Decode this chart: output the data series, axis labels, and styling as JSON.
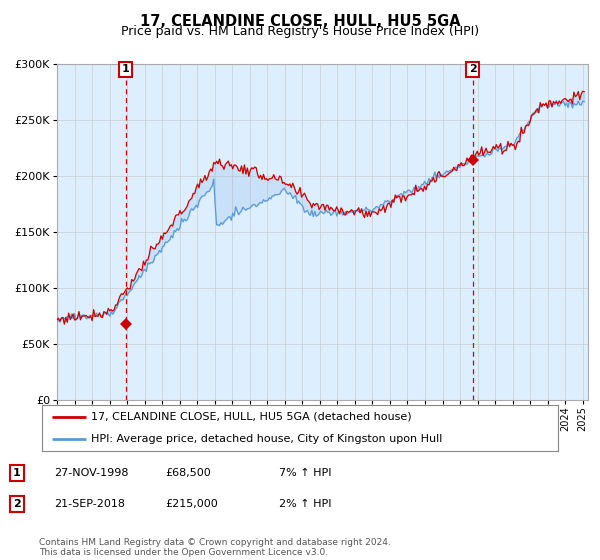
{
  "title": "17, CELANDINE CLOSE, HULL, HU5 5GA",
  "subtitle": "Price paid vs. HM Land Registry's House Price Index (HPI)",
  "legend_line1": "17, CELANDINE CLOSE, HULL, HU5 5GA (detached house)",
  "legend_line2": "HPI: Average price, detached house, City of Kingston upon Hull",
  "sale1_label": "1",
  "sale1_date": "27-NOV-1998",
  "sale1_price": "£68,500",
  "sale1_hpi": "7% ↑ HPI",
  "sale1_year": 1998.92,
  "sale1_value": 68500,
  "sale2_label": "2",
  "sale2_date": "21-SEP-2018",
  "sale2_price": "£215,000",
  "sale2_hpi": "2% ↑ HPI",
  "sale2_year": 2018.72,
  "sale2_value": 215000,
  "footer": "Contains HM Land Registry data © Crown copyright and database right 2024.\nThis data is licensed under the Open Government Licence v3.0.",
  "hpi_color": "#5b9bd5",
  "property_color": "#cc0000",
  "marker_color": "#cc0000",
  "fill_color": "#ddeeff",
  "background_color": "#ffffff",
  "grid_color": "#cccccc",
  "title_fontsize": 10.5,
  "subtitle_fontsize": 9,
  "ylim": [
    0,
    300000
  ],
  "xlim_start": 1995.0,
  "xlim_end": 2025.3
}
